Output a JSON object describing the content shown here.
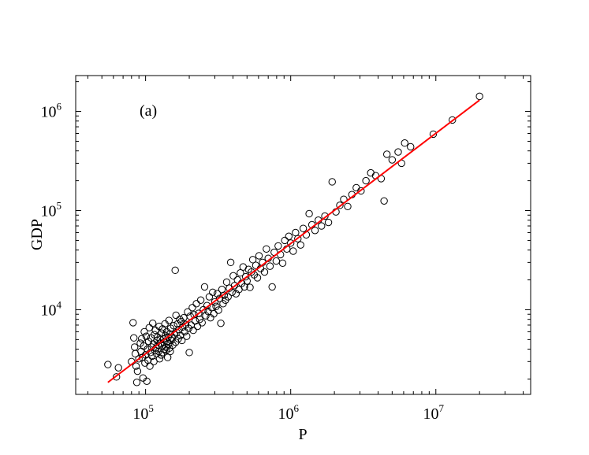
{
  "chart_data": {
    "type": "scatter",
    "title": "",
    "panel_label": "(a)",
    "xlabel": "P",
    "ylabel": "GDP",
    "xscale": "log",
    "yscale": "log",
    "xlim": [
      33000,
      45000000
    ],
    "ylim": [
      1400,
      2300000
    ],
    "x_ticks": [
      {
        "value": 100000,
        "base": "10",
        "exp": "5"
      },
      {
        "value": 1000000,
        "base": "10",
        "exp": "6"
      },
      {
        "value": 10000000,
        "base": "10",
        "exp": "7"
      }
    ],
    "y_ticks": [
      {
        "value": 10000,
        "base": "10",
        "exp": "4"
      },
      {
        "value": 100000,
        "base": "10",
        "exp": "5"
      },
      {
        "value": 1000000,
        "base": "10",
        "exp": "6"
      }
    ],
    "grid": false,
    "fit_line": {
      "x": [
        55000,
        20000000
      ],
      "y": [
        1850,
        1300000
      ],
      "color": "#ff0000"
    },
    "points": [
      [
        55000,
        2800
      ],
      [
        63000,
        2100
      ],
      [
        65000,
        2600
      ],
      [
        80000,
        3000
      ],
      [
        82000,
        7400
      ],
      [
        83000,
        5200
      ],
      [
        84000,
        4200
      ],
      [
        85000,
        3600
      ],
      [
        86000,
        2700
      ],
      [
        87000,
        1850
      ],
      [
        88000,
        2400
      ],
      [
        90000,
        3200
      ],
      [
        92000,
        4600
      ],
      [
        93000,
        3800
      ],
      [
        94000,
        5100
      ],
      [
        95000,
        3300
      ],
      [
        96000,
        2050
      ],
      [
        97000,
        4300
      ],
      [
        98000,
        6000
      ],
      [
        99000,
        2900
      ],
      [
        100000,
        3500
      ],
      [
        101000,
        5400
      ],
      [
        102000,
        1900
      ],
      [
        103000,
        4000
      ],
      [
        104000,
        3100
      ],
      [
        105000,
        4800
      ],
      [
        106000,
        6600
      ],
      [
        107000,
        2700
      ],
      [
        108000,
        3700
      ],
      [
        109000,
        5200
      ],
      [
        110000,
        4200
      ],
      [
        111000,
        3400
      ],
      [
        112000,
        7300
      ],
      [
        113000,
        4500
      ],
      [
        114000,
        3000
      ],
      [
        115000,
        5600
      ],
      [
        116000,
        3900
      ],
      [
        117000,
        6200
      ],
      [
        118000,
        4100
      ],
      [
        119000,
        3600
      ],
      [
        120000,
        4900
      ],
      [
        121000,
        5300
      ],
      [
        122000,
        4400
      ],
      [
        123000,
        3800
      ],
      [
        124000,
        6800
      ],
      [
        125000,
        3200
      ],
      [
        126000,
        5000
      ],
      [
        127000,
        4600
      ],
      [
        128000,
        3500
      ],
      [
        129000,
        5800
      ],
      [
        130000,
        4300
      ],
      [
        131000,
        6400
      ],
      [
        132000,
        3700
      ],
      [
        133000,
        5100
      ],
      [
        134000,
        4700
      ],
      [
        135000,
        4000
      ],
      [
        136000,
        7200
      ],
      [
        137000,
        5500
      ],
      [
        138000,
        4200
      ],
      [
        139000,
        3900
      ],
      [
        140000,
        6000
      ],
      [
        141000,
        4800
      ],
      [
        142000,
        3300
      ],
      [
        143000,
        5300
      ],
      [
        144000,
        4500
      ],
      [
        145000,
        7800
      ],
      [
        146000,
        4100
      ],
      [
        147000,
        5700
      ],
      [
        148000,
        3800
      ],
      [
        149000,
        6500
      ],
      [
        150000,
        4900
      ],
      [
        152000,
        5200
      ],
      [
        154000,
        4400
      ],
      [
        156000,
        6900
      ],
      [
        158000,
        5600
      ],
      [
        160000,
        25000
      ],
      [
        161000,
        4700
      ],
      [
        162000,
        8800
      ],
      [
        164000,
        5900
      ],
      [
        166000,
        7200
      ],
      [
        168000,
        5100
      ],
      [
        170000,
        6300
      ],
      [
        172000,
        8000
      ],
      [
        174000,
        5500
      ],
      [
        176000,
        7600
      ],
      [
        178000,
        4900
      ],
      [
        180000,
        6700
      ],
      [
        183000,
        8300
      ],
      [
        186000,
        6000
      ],
      [
        189000,
        7100
      ],
      [
        192000,
        5400
      ],
      [
        195000,
        9500
      ],
      [
        198000,
        6500
      ],
      [
        200000,
        3700
      ],
      [
        203000,
        8600
      ],
      [
        206000,
        7000
      ],
      [
        210000,
        10500
      ],
      [
        213000,
        6200
      ],
      [
        216000,
        8900
      ],
      [
        220000,
        7700
      ],
      [
        224000,
        11500
      ],
      [
        228000,
        6800
      ],
      [
        232000,
        9200
      ],
      [
        236000,
        8000
      ],
      [
        240000,
        12500
      ],
      [
        245000,
        7400
      ],
      [
        250000,
        10000
      ],
      [
        255000,
        17000
      ],
      [
        260000,
        8700
      ],
      [
        265000,
        11000
      ],
      [
        270000,
        9600
      ],
      [
        275000,
        13500
      ],
      [
        280000,
        8300
      ],
      [
        285000,
        10500
      ],
      [
        290000,
        15000
      ],
      [
        295000,
        9100
      ],
      [
        300000,
        12000
      ],
      [
        306000,
        10800
      ],
      [
        312000,
        14500
      ],
      [
        318000,
        9900
      ],
      [
        324000,
        13000
      ],
      [
        330000,
        7300
      ],
      [
        336000,
        16000
      ],
      [
        342000,
        11500
      ],
      [
        348000,
        14000
      ],
      [
        355000,
        12500
      ],
      [
        362000,
        19000
      ],
      [
        370000,
        13500
      ],
      [
        378000,
        16500
      ],
      [
        386000,
        30000
      ],
      [
        394000,
        15000
      ],
      [
        402000,
        22000
      ],
      [
        410000,
        17500
      ],
      [
        420000,
        14500
      ],
      [
        430000,
        20000
      ],
      [
        440000,
        16000
      ],
      [
        450000,
        23500
      ],
      [
        460000,
        18500
      ],
      [
        470000,
        27000
      ],
      [
        480000,
        17000
      ],
      [
        490000,
        21500
      ],
      [
        500000,
        19500
      ],
      [
        512000,
        25500
      ],
      [
        524000,
        16800
      ],
      [
        536000,
        24000
      ],
      [
        548000,
        32000
      ],
      [
        560000,
        22500
      ],
      [
        575000,
        28000
      ],
      [
        590000,
        21000
      ],
      [
        605000,
        35000
      ],
      [
        620000,
        26000
      ],
      [
        640000,
        30000
      ],
      [
        660000,
        24000
      ],
      [
        680000,
        41000
      ],
      [
        700000,
        33000
      ],
      [
        720000,
        27500
      ],
      [
        745000,
        17000
      ],
      [
        770000,
        38000
      ],
      [
        795000,
        31000
      ],
      [
        820000,
        44000
      ],
      [
        850000,
        36000
      ],
      [
        880000,
        29500
      ],
      [
        910000,
        50000
      ],
      [
        940000,
        41000
      ],
      [
        970000,
        55000
      ],
      [
        1000000,
        47000
      ],
      [
        1040000,
        39000
      ],
      [
        1080000,
        60000
      ],
      [
        1120000,
        52000
      ],
      [
        1170000,
        45000
      ],
      [
        1220000,
        66000
      ],
      [
        1280000,
        57000
      ],
      [
        1340000,
        93000
      ],
      [
        1400000,
        72000
      ],
      [
        1470000,
        63000
      ],
      [
        1550000,
        80000
      ],
      [
        1630000,
        70000
      ],
      [
        1720000,
        88000
      ],
      [
        1820000,
        76000
      ],
      [
        1930000,
        195000
      ],
      [
        2050000,
        97000
      ],
      [
        2180000,
        113000
      ],
      [
        2320000,
        130000
      ],
      [
        2470000,
        110000
      ],
      [
        2640000,
        145000
      ],
      [
        2830000,
        170000
      ],
      [
        3050000,
        158000
      ],
      [
        3300000,
        200000
      ],
      [
        3560000,
        240000
      ],
      [
        3850000,
        225000
      ],
      [
        4200000,
        210000
      ],
      [
        4400000,
        125000
      ],
      [
        4600000,
        370000
      ],
      [
        5000000,
        325000
      ],
      [
        5500000,
        390000
      ],
      [
        5800000,
        300000
      ],
      [
        6100000,
        480000
      ],
      [
        6700000,
        440000
      ],
      [
        9600000,
        590000
      ],
      [
        13000000,
        820000
      ],
      [
        20000000,
        1420000
      ]
    ]
  }
}
